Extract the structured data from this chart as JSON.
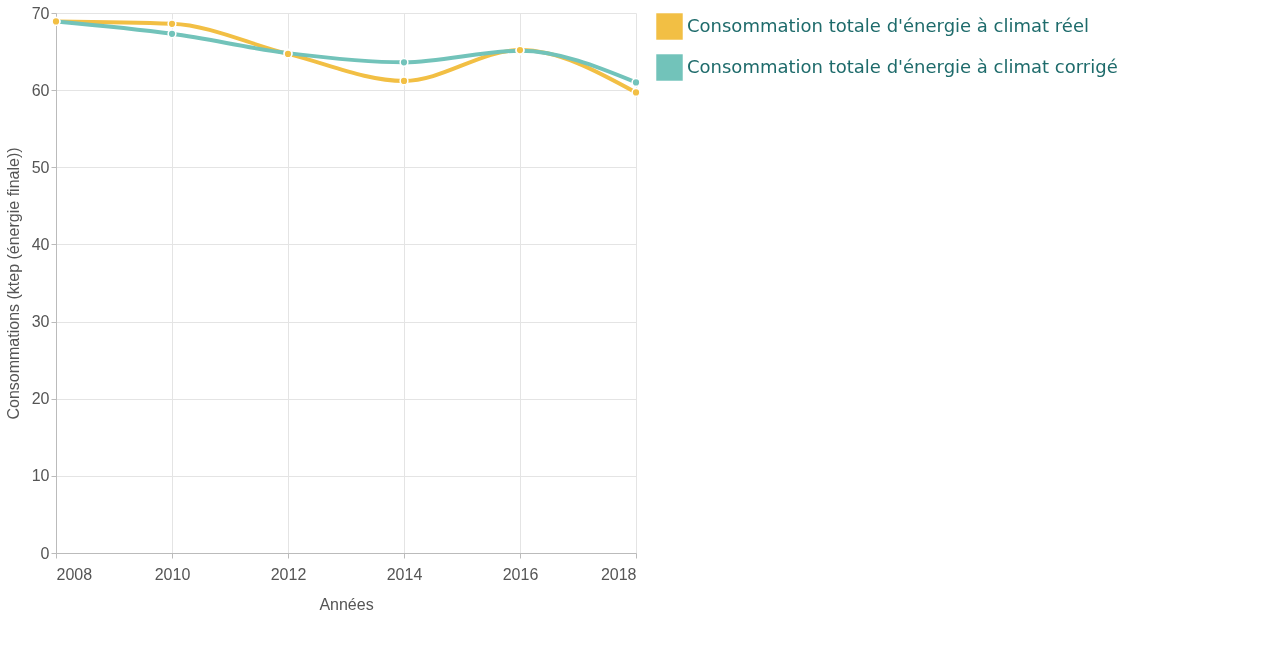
{
  "chart_data": {
    "type": "line",
    "xlabel": "Années",
    "ylabel": "Consommations (ktep (énergie finale))",
    "x": [
      2008,
      2010,
      2012,
      2014,
      2016,
      2018
    ],
    "series": [
      {
        "name": "Consommation totale d'énergie à climat réel",
        "color": "#f2bf44",
        "values": [
          68.9,
          68.6,
          64.7,
          61.2,
          65.2,
          59.7
        ]
      },
      {
        "name": "Consommation totale d'énergie à climat corrigé",
        "color": "#72c3ba",
        "values": [
          68.9,
          67.3,
          64.8,
          63.6,
          65.1,
          61.0
        ]
      }
    ],
    "xlim": [
      2008,
      2018
    ],
    "xticks": [
      2008,
      2010,
      2012,
      2014,
      2016,
      2018
    ],
    "ylim": [
      0,
      70
    ],
    "yticks": [
      0,
      10,
      20,
      30,
      40,
      50,
      60,
      70
    ],
    "grid": true,
    "legend": "right",
    "marker": "circle",
    "line_style": "solid"
  }
}
